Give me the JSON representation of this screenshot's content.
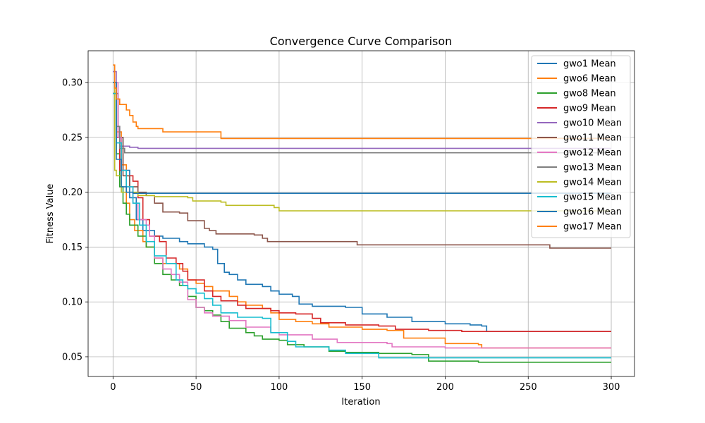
{
  "chart_data": {
    "type": "line",
    "title": "Convergence Curve Comparison",
    "xlabel": "Iteration",
    "ylabel": "Fitness Value",
    "xlim": [
      -15,
      314
    ],
    "ylim": [
      0.032,
      0.329
    ],
    "xticks": [
      0,
      50,
      100,
      150,
      200,
      250,
      300
    ],
    "yticks": [
      0.05,
      0.1,
      0.15,
      0.2,
      0.25,
      0.3
    ],
    "ytick_labels": [
      "0.05",
      "0.10",
      "0.15",
      "0.20",
      "0.25",
      "0.30"
    ],
    "grid": true,
    "legend_position": "top-right",
    "series": [
      {
        "name": "gwo1 Mean",
        "color": "#1f77b4",
        "points": [
          [
            0,
            0.29
          ],
          [
            3,
            0.25
          ],
          [
            6,
            0.22
          ],
          [
            10,
            0.195
          ],
          [
            14,
            0.175
          ],
          [
            18,
            0.165
          ],
          [
            25,
            0.16
          ],
          [
            30,
            0.158
          ],
          [
            40,
            0.155
          ],
          [
            45,
            0.153
          ],
          [
            55,
            0.15
          ],
          [
            60,
            0.148
          ],
          [
            63,
            0.135
          ],
          [
            67,
            0.127
          ],
          [
            70,
            0.125
          ],
          [
            75,
            0.12
          ],
          [
            80,
            0.116
          ],
          [
            90,
            0.114
          ],
          [
            95,
            0.11
          ],
          [
            100,
            0.107
          ],
          [
            108,
            0.105
          ],
          [
            112,
            0.098
          ],
          [
            120,
            0.096
          ],
          [
            140,
            0.095
          ],
          [
            150,
            0.089
          ],
          [
            165,
            0.086
          ],
          [
            180,
            0.082
          ],
          [
            200,
            0.08
          ],
          [
            215,
            0.079
          ],
          [
            222,
            0.078
          ],
          [
            225,
            0.073
          ],
          [
            300,
            0.073
          ]
        ]
      },
      {
        "name": "gwo6 Mean",
        "color": "#ff7f0e",
        "points": [
          [
            0,
            0.29
          ],
          [
            2,
            0.255
          ],
          [
            5,
            0.225
          ],
          [
            8,
            0.19
          ],
          [
            10,
            0.175
          ],
          [
            13,
            0.165
          ],
          [
            18,
            0.155
          ],
          [
            20,
            0.15
          ],
          [
            25,
            0.14
          ],
          [
            30,
            0.135
          ],
          [
            40,
            0.13
          ],
          [
            45,
            0.12
          ],
          [
            50,
            0.117
          ],
          [
            55,
            0.114
          ],
          [
            60,
            0.11
          ],
          [
            70,
            0.105
          ],
          [
            75,
            0.1
          ],
          [
            80,
            0.097
          ],
          [
            90,
            0.094
          ],
          [
            95,
            0.09
          ],
          [
            100,
            0.084
          ],
          [
            110,
            0.082
          ],
          [
            120,
            0.08
          ],
          [
            130,
            0.077
          ],
          [
            150,
            0.075
          ],
          [
            165,
            0.074
          ],
          [
            175,
            0.067
          ],
          [
            200,
            0.062
          ],
          [
            220,
            0.061
          ],
          [
            222,
            0.058
          ],
          [
            300,
            0.058
          ]
        ]
      },
      {
        "name": "gwo8 Mean",
        "color": "#2ca02c",
        "points": [
          [
            0,
            0.29
          ],
          [
            2,
            0.235
          ],
          [
            4,
            0.205
          ],
          [
            6,
            0.19
          ],
          [
            8,
            0.18
          ],
          [
            10,
            0.17
          ],
          [
            15,
            0.16
          ],
          [
            20,
            0.15
          ],
          [
            25,
            0.135
          ],
          [
            30,
            0.125
          ],
          [
            35,
            0.12
          ],
          [
            40,
            0.115
          ],
          [
            45,
            0.105
          ],
          [
            50,
            0.095
          ],
          [
            55,
            0.092
          ],
          [
            60,
            0.088
          ],
          [
            65,
            0.082
          ],
          [
            70,
            0.076
          ],
          [
            80,
            0.072
          ],
          [
            85,
            0.069
          ],
          [
            90,
            0.066
          ],
          [
            100,
            0.065
          ],
          [
            105,
            0.061
          ],
          [
            115,
            0.059
          ],
          [
            130,
            0.055
          ],
          [
            140,
            0.054
          ],
          [
            160,
            0.053
          ],
          [
            180,
            0.052
          ],
          [
            190,
            0.046
          ],
          [
            220,
            0.045
          ],
          [
            300,
            0.045
          ]
        ]
      },
      {
        "name": "gwo9 Mean",
        "color": "#d62728",
        "points": [
          [
            0,
            0.29
          ],
          [
            2,
            0.25
          ],
          [
            4,
            0.22
          ],
          [
            8,
            0.215
          ],
          [
            12,
            0.21
          ],
          [
            15,
            0.195
          ],
          [
            18,
            0.175
          ],
          [
            22,
            0.16
          ],
          [
            28,
            0.155
          ],
          [
            32,
            0.14
          ],
          [
            38,
            0.135
          ],
          [
            42,
            0.128
          ],
          [
            45,
            0.12
          ],
          [
            55,
            0.11
          ],
          [
            60,
            0.105
          ],
          [
            65,
            0.101
          ],
          [
            75,
            0.097
          ],
          [
            80,
            0.094
          ],
          [
            95,
            0.092
          ],
          [
            100,
            0.09
          ],
          [
            110,
            0.089
          ],
          [
            120,
            0.085
          ],
          [
            125,
            0.081
          ],
          [
            140,
            0.079
          ],
          [
            160,
            0.078
          ],
          [
            170,
            0.075
          ],
          [
            190,
            0.074
          ],
          [
            210,
            0.073
          ],
          [
            300,
            0.073
          ]
        ]
      },
      {
        "name": "gwo10 Mean",
        "color": "#9467bd",
        "points": [
          [
            0,
            0.31
          ],
          [
            2,
            0.26
          ],
          [
            4,
            0.242
          ],
          [
            10,
            0.241
          ],
          [
            15,
            0.24
          ],
          [
            300,
            0.24
          ]
        ]
      },
      {
        "name": "gwo11 Mean",
        "color": "#8c564b",
        "points": [
          [
            0,
            0.29
          ],
          [
            3,
            0.25
          ],
          [
            6,
            0.215
          ],
          [
            10,
            0.205
          ],
          [
            15,
            0.2
          ],
          [
            20,
            0.197
          ],
          [
            25,
            0.19
          ],
          [
            30,
            0.182
          ],
          [
            40,
            0.181
          ],
          [
            45,
            0.174
          ],
          [
            55,
            0.167
          ],
          [
            58,
            0.165
          ],
          [
            62,
            0.162
          ],
          [
            85,
            0.161
          ],
          [
            90,
            0.158
          ],
          [
            93,
            0.155
          ],
          [
            145,
            0.155
          ],
          [
            147,
            0.152
          ],
          [
            260,
            0.152
          ],
          [
            263,
            0.149
          ],
          [
            300,
            0.149
          ]
        ]
      },
      {
        "name": "gwo12 Mean",
        "color": "#e377c2",
        "points": [
          [
            0,
            0.3
          ],
          [
            3,
            0.25
          ],
          [
            5,
            0.22
          ],
          [
            8,
            0.205
          ],
          [
            12,
            0.19
          ],
          [
            15,
            0.175
          ],
          [
            20,
            0.17
          ],
          [
            22,
            0.16
          ],
          [
            25,
            0.14
          ],
          [
            30,
            0.13
          ],
          [
            35,
            0.125
          ],
          [
            40,
            0.118
          ],
          [
            45,
            0.102
          ],
          [
            50,
            0.095
          ],
          [
            55,
            0.09
          ],
          [
            60,
            0.087
          ],
          [
            70,
            0.083
          ],
          [
            80,
            0.077
          ],
          [
            95,
            0.072
          ],
          [
            100,
            0.07
          ],
          [
            120,
            0.066
          ],
          [
            135,
            0.063
          ],
          [
            165,
            0.062
          ],
          [
            168,
            0.059
          ],
          [
            200,
            0.058
          ],
          [
            300,
            0.058
          ]
        ]
      },
      {
        "name": "gwo13 Mean",
        "color": "#7f7f7f",
        "points": [
          [
            0,
            0.3
          ],
          [
            2,
            0.26
          ],
          [
            4,
            0.24
          ],
          [
            7,
            0.236
          ],
          [
            300,
            0.236
          ]
        ]
      },
      {
        "name": "gwo14 Mean",
        "color": "#bcbd22",
        "points": [
          [
            0,
            0.3
          ],
          [
            1,
            0.22
          ],
          [
            2,
            0.215
          ],
          [
            5,
            0.2
          ],
          [
            10,
            0.2
          ],
          [
            15,
            0.197
          ],
          [
            25,
            0.196
          ],
          [
            45,
            0.195
          ],
          [
            48,
            0.192
          ],
          [
            65,
            0.191
          ],
          [
            68,
            0.188
          ],
          [
            90,
            0.188
          ],
          [
            97,
            0.186
          ],
          [
            100,
            0.183
          ],
          [
            300,
            0.183
          ]
        ]
      },
      {
        "name": "gwo15 Mean",
        "color": "#17becf",
        "points": [
          [
            0,
            0.29
          ],
          [
            2,
            0.245
          ],
          [
            5,
            0.22
          ],
          [
            8,
            0.205
          ],
          [
            12,
            0.19
          ],
          [
            16,
            0.17
          ],
          [
            20,
            0.155
          ],
          [
            25,
            0.142
          ],
          [
            32,
            0.135
          ],
          [
            38,
            0.12
          ],
          [
            42,
            0.115
          ],
          [
            45,
            0.112
          ],
          [
            50,
            0.108
          ],
          [
            55,
            0.103
          ],
          [
            60,
            0.097
          ],
          [
            65,
            0.09
          ],
          [
            75,
            0.086
          ],
          [
            90,
            0.085
          ],
          [
            95,
            0.072
          ],
          [
            105,
            0.064
          ],
          [
            110,
            0.059
          ],
          [
            130,
            0.056
          ],
          [
            140,
            0.053
          ],
          [
            160,
            0.049
          ],
          [
            200,
            0.049
          ],
          [
            300,
            0.049
          ]
        ]
      },
      {
        "name": "gwo16 Mean",
        "color": "#1f77b4",
        "points": [
          [
            0,
            0.3
          ],
          [
            2,
            0.23
          ],
          [
            5,
            0.205
          ],
          [
            8,
            0.2
          ],
          [
            12,
            0.199
          ],
          [
            300,
            0.199
          ]
        ]
      },
      {
        "name": "gwo17 Mean",
        "color": "#ff7f0e",
        "points": [
          [
            0,
            0.316
          ],
          [
            1,
            0.295
          ],
          [
            2,
            0.285
          ],
          [
            4,
            0.28
          ],
          [
            8,
            0.275
          ],
          [
            10,
            0.27
          ],
          [
            12,
            0.264
          ],
          [
            14,
            0.26
          ],
          [
            15,
            0.258
          ],
          [
            30,
            0.255
          ],
          [
            40,
            0.255
          ],
          [
            63,
            0.255
          ],
          [
            65,
            0.249
          ],
          [
            300,
            0.249
          ]
        ]
      }
    ]
  }
}
